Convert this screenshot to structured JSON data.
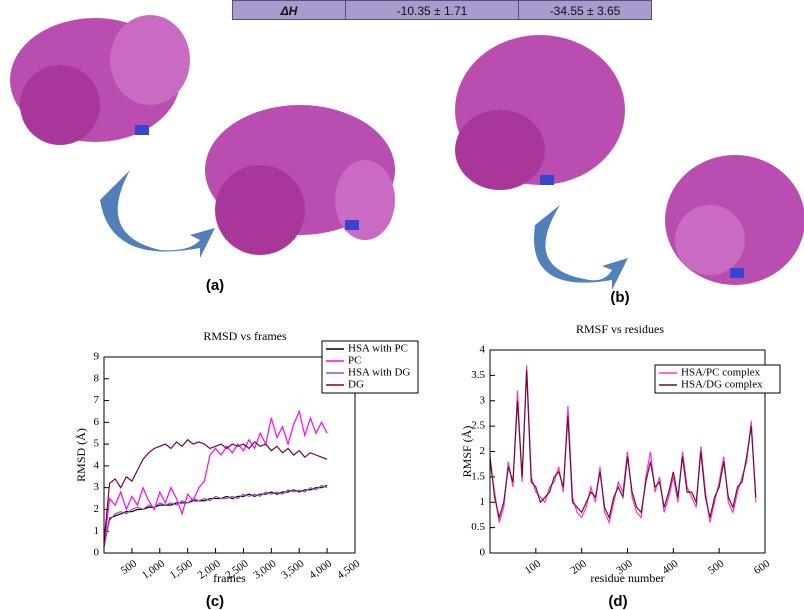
{
  "table": {
    "rows": [
      [
        "ΔH",
        "-10.35 ± 1.71",
        "-34.55 ± 3.65"
      ]
    ]
  },
  "panel_labels": [
    "(a)",
    "(b)"
  ],
  "chart_data": [
    {
      "type": "line",
      "title": "RMSD vs frames",
      "label": "(c)",
      "x_label": "frames",
      "y_label": "RMSD (Å)",
      "x": [
        0,
        100,
        200,
        300,
        400,
        500,
        600,
        700,
        800,
        900,
        1000,
        1100,
        1200,
        1300,
        1400,
        1500,
        1600,
        1700,
        1800,
        1900,
        2000,
        2100,
        2200,
        2300,
        2400,
        2500,
        2600,
        2700,
        2800,
        2900,
        3000,
        3100,
        3200,
        3300,
        3400,
        3500,
        3600,
        3700,
        3800,
        3900,
        4000
      ],
      "series": [
        {
          "name": "HSA with PC",
          "color": "#000000",
          "values": [
            0.3,
            1.6,
            1.7,
            1.8,
            1.9,
            1.9,
            2.0,
            2.0,
            2.1,
            2.1,
            2.2,
            2.2,
            2.2,
            2.3,
            2.3,
            2.3,
            2.4,
            2.4,
            2.4,
            2.5,
            2.5,
            2.5,
            2.6,
            2.5,
            2.6,
            2.6,
            2.7,
            2.6,
            2.7,
            2.7,
            2.8,
            2.7,
            2.8,
            2.8,
            2.9,
            2.8,
            2.9,
            2.9,
            3.0,
            3.0,
            3.1
          ]
        },
        {
          "name": "PC",
          "color": "#ff00ff",
          "values": [
            0.3,
            2.5,
            2.2,
            2.8,
            2.0,
            2.6,
            2.2,
            3.0,
            2.4,
            2.0,
            2.8,
            2.3,
            3.0,
            2.5,
            1.8,
            2.7,
            2.4,
            3.0,
            3.3,
            4.5,
            4.8,
            4.5,
            4.9,
            4.6,
            5.0,
            4.7,
            5.2,
            4.8,
            5.5,
            5.0,
            6.2,
            5.3,
            5.8,
            5.0,
            5.9,
            6.5,
            5.4,
            6.2,
            5.5,
            6.0,
            5.5
          ]
        },
        {
          "name": "HSA with DG",
          "color": "#9b4fc0",
          "values": [
            0.4,
            1.5,
            1.8,
            1.9,
            1.8,
            2.0,
            2.1,
            2.0,
            2.2,
            2.1,
            2.3,
            2.2,
            2.3,
            2.2,
            2.4,
            2.3,
            2.5,
            2.4,
            2.5,
            2.4,
            2.6,
            2.5,
            2.5,
            2.6,
            2.5,
            2.7,
            2.6,
            2.7,
            2.6,
            2.8,
            2.7,
            2.8,
            2.7,
            2.9,
            2.8,
            2.9,
            2.8,
            3.0,
            2.9,
            3.1,
            3.0
          ]
        },
        {
          "name": "DG",
          "color": "#7a0040",
          "values": [
            0.5,
            3.2,
            3.4,
            3.0,
            3.5,
            3.3,
            3.8,
            4.3,
            4.6,
            4.8,
            4.9,
            5.0,
            4.8,
            5.1,
            4.9,
            5.2,
            5.0,
            5.1,
            5.0,
            4.8,
            4.9,
            5.0,
            4.8,
            5.0,
            4.9,
            5.0,
            4.8,
            5.1,
            4.9,
            5.0,
            4.7,
            4.9,
            4.6,
            4.8,
            4.5,
            4.7,
            4.4,
            4.6,
            4.5,
            4.4,
            4.3
          ]
        }
      ],
      "xlim": [
        0,
        4500
      ],
      "xticks": [
        500,
        {
          "value": 1000,
          "label": "1,000"
        },
        {
          "value": 1500,
          "label": "1,500"
        },
        {
          "value": 2000,
          "label": "2,000"
        },
        {
          "value": 2500,
          "label": "2,500"
        },
        {
          "value": 3000,
          "label": "3,000"
        },
        {
          "value": 3500,
          "label": "3,500"
        },
        {
          "value": 4000,
          "label": "4,000"
        },
        {
          "value": 4500,
          "label": "4,500"
        }
      ],
      "ylim": [
        0,
        9
      ],
      "yticks": [
        0,
        1,
        2,
        3,
        4,
        5,
        6,
        7,
        8,
        9
      ],
      "legend": "upper right"
    },
    {
      "type": "line",
      "title": "RMSF vs residues",
      "label": "(d)",
      "x_label": "residue number",
      "y_label": "RMSF (Å)",
      "x": [
        0,
        10,
        20,
        30,
        40,
        50,
        60,
        70,
        80,
        90,
        100,
        110,
        120,
        130,
        140,
        150,
        160,
        170,
        180,
        190,
        200,
        210,
        220,
        230,
        240,
        250,
        260,
        270,
        280,
        290,
        300,
        310,
        320,
        330,
        340,
        350,
        360,
        370,
        380,
        390,
        400,
        410,
        420,
        430,
        440,
        450,
        460,
        470,
        480,
        490,
        500,
        510,
        520,
        530,
        540,
        550,
        560,
        570,
        580
      ],
      "series": [
        {
          "name": "HSA/PC complex",
          "color": "#ff33cc",
          "values": [
            1.8,
            1.2,
            0.6,
            0.9,
            1.8,
            1.3,
            3.2,
            1.4,
            3.7,
            1.5,
            1.2,
            1.1,
            1.0,
            1.3,
            1.4,
            1.7,
            1.2,
            2.9,
            1.1,
            0.8,
            0.7,
            0.9,
            1.3,
            1.0,
            1.7,
            0.8,
            0.6,
            1.0,
            1.4,
            1.2,
            2.0,
            1.1,
            0.8,
            0.7,
            1.5,
            2.0,
            1.2,
            1.5,
            0.8,
            1.1,
            1.5,
            1.0,
            2.0,
            1.3,
            1.1,
            0.9,
            2.1,
            1.2,
            0.6,
            1.0,
            1.4,
            1.9,
            1.0,
            0.8,
            1.2,
            1.5,
            1.8,
            2.6,
            1.0
          ]
        },
        {
          "name": "HSA/DG complex",
          "color": "#6b0f3a",
          "values": [
            1.9,
            1.1,
            0.7,
            1.0,
            1.7,
            1.4,
            3.0,
            1.5,
            3.6,
            1.4,
            1.3,
            1.0,
            1.1,
            1.2,
            1.5,
            1.6,
            1.3,
            2.7,
            1.0,
            0.9,
            0.8,
            1.0,
            1.2,
            1.1,
            1.6,
            0.9,
            0.7,
            1.1,
            1.3,
            1.1,
            1.9,
            1.2,
            0.9,
            0.8,
            1.4,
            1.8,
            1.3,
            1.4,
            0.9,
            1.2,
            1.6,
            1.1,
            1.9,
            1.2,
            1.2,
            1.0,
            2.0,
            1.1,
            0.7,
            1.1,
            1.3,
            1.8,
            1.1,
            0.9,
            1.3,
            1.4,
            1.9,
            2.5,
            1.1
          ]
        }
      ],
      "xlim": [
        0,
        600
      ],
      "xticks": [
        100,
        200,
        300,
        400,
        500,
        600
      ],
      "ylim": [
        0,
        4
      ],
      "yticks": [
        0,
        0.5,
        1,
        1.5,
        2,
        2.5,
        3,
        3.5,
        4
      ],
      "legend": "upper right"
    }
  ]
}
